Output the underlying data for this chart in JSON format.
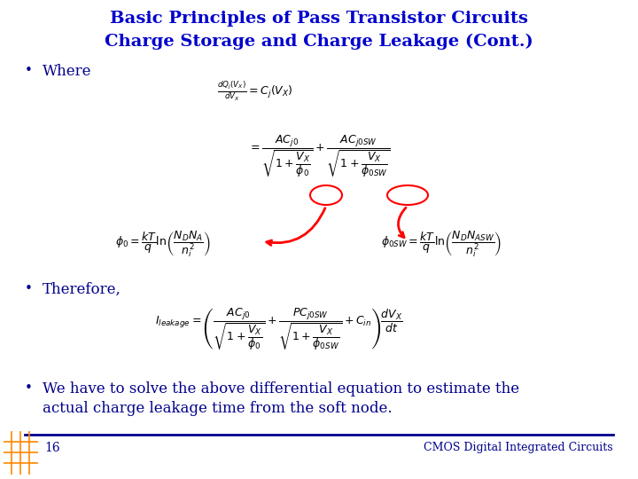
{
  "title_line1": "Basic Principles of Pass Transistor Circuits",
  "title_line2": "Charge Storage and Charge Leakage (Cont.)",
  "title_color": "#0000CC",
  "title_fontsize": 14,
  "bg_color": "#FFFFFF",
  "bullet_color": "#00008B",
  "text_color": "#000000",
  "footer_line_color": "#00008B",
  "footer_text": "CMOS Digital Integrated Circuits",
  "footer_number": "16",
  "bullet1": "Where",
  "bullet2": "Therefore,",
  "bullet3_part1": "We have to solve the above differential equation to estimate the",
  "bullet3_part2": "actual charge leakage time from the soft node.",
  "math_fontsize": 9,
  "math_fontsize2": 8,
  "bullet_fontsize": 12,
  "footer_fontsize": 9
}
